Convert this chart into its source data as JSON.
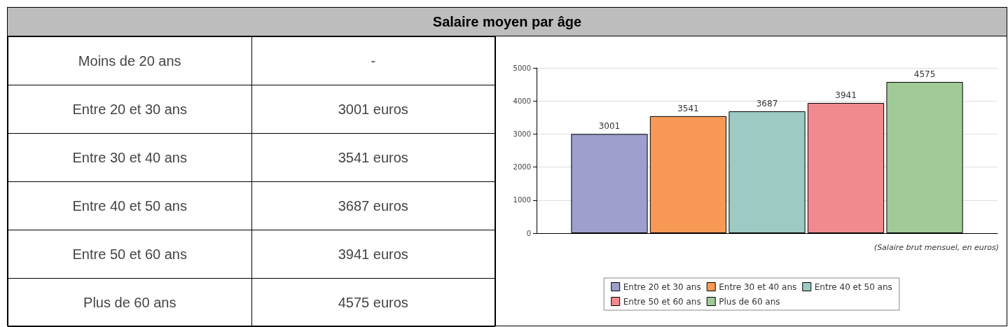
{
  "chart_data": [
    {
      "type": "other",
      "title": "Salaire moyen par âge",
      "annotations": [
        "Moins de 20 ans",
        "-",
        "Entre 20 et 30 ans",
        "3001 euros",
        "Entre 30 et 40 ans",
        "3541 euros",
        "Entre 40 et 50 ans",
        "3687 euros",
        "Entre 50 et 60 ans",
        "3941 euros",
        "Plus de 60 ans",
        "4575 euros"
      ]
    },
    {
      "type": "bar",
      "categories": [
        null
      ],
      "series": [
        {
          "name": "Entre 20 et 30 ans",
          "color": "#9e9fcc",
          "values": [
            3001
          ]
        },
        {
          "name": "Entre 30 et 40 ans",
          "color": "#f89a55",
          "values": [
            3541
          ]
        },
        {
          "name": "Entre 40 et 50 ans",
          "color": "#9dcac3",
          "values": [
            3687
          ]
        },
        {
          "name": "Entre 50 et 60 ans",
          "color": "#f08a8e",
          "values": [
            3941
          ]
        },
        {
          "name": "Plus de 60 ans",
          "color": "#a0cb98",
          "values": [
            4575
          ]
        }
      ],
      "ylim": [
        0,
        5000
      ],
      "yticks": [
        0,
        1000,
        2000,
        3000,
        4000,
        5000
      ],
      "grid": "y",
      "data_labels": true,
      "legend": "bottom",
      "annotations": [
        "(Salaire brut mensuel, en euros)"
      ]
    }
  ]
}
